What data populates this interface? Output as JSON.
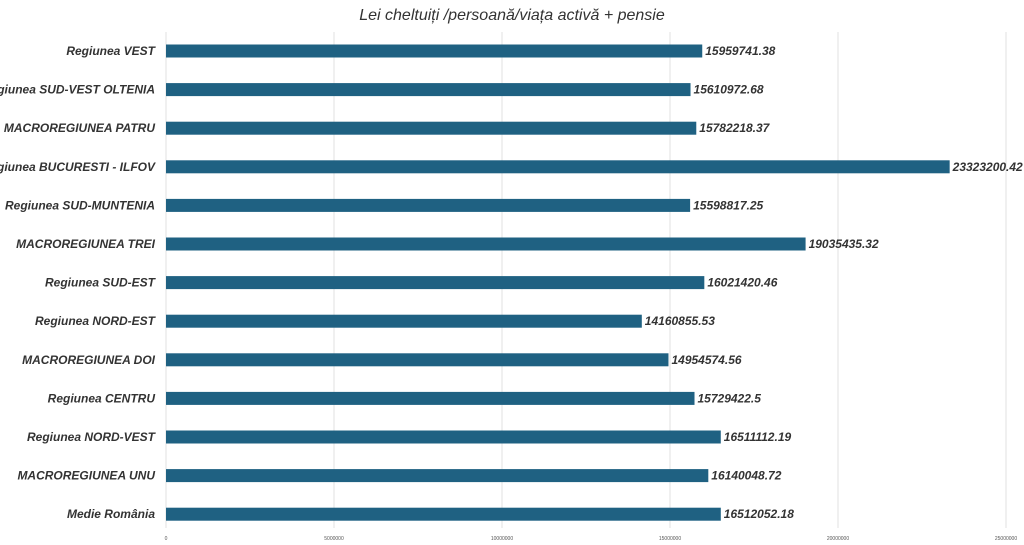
{
  "chart_data": {
    "type": "bar",
    "orientation": "horizontal",
    "title": "Lei cheltuiți /persoană/viața activă + pensie",
    "xlabel": "",
    "ylabel": "",
    "xlim": [
      0,
      25000000
    ],
    "x_ticks": [
      "0",
      "5000000",
      "10000000",
      "15000000",
      "20000000",
      "25000000"
    ],
    "x_tick_values": [
      0,
      5000000,
      10000000,
      15000000,
      20000000,
      25000000
    ],
    "grid": true,
    "legend": "none",
    "bar_color": "#1f6182",
    "categories": [
      "Regiunea VEST",
      "Regiunea SUD-VEST OLTENIA",
      "MACROREGIUNEA PATRU",
      "Regiunea BUCURESTI - ILFOV",
      "Regiunea SUD-MUNTENIA",
      "MACROREGIUNEA TREI",
      "Regiunea SUD-EST",
      "Regiunea NORD-EST",
      "MACROREGIUNEA DOI",
      "Regiunea CENTRU",
      "Regiunea NORD-VEST",
      "MACROREGIUNEA UNU",
      "Medie România"
    ],
    "values": [
      15959741.38,
      15610972.68,
      15782218.37,
      23323200.42,
      15598817.25,
      19035435.32,
      16021420.46,
      14160855.53,
      14954574.56,
      15729422.5,
      16511112.19,
      16140048.72,
      16512052.18
    ],
    "value_labels": [
      "15959741.38",
      "15610972.68",
      "15782218.37",
      "23323200.42",
      "15598817.25",
      "19035435.32",
      "16021420.46",
      "14160855.53",
      "14954574.56",
      "15729422.5",
      "16511112.19",
      "16140048.72",
      "16512052.18"
    ]
  }
}
